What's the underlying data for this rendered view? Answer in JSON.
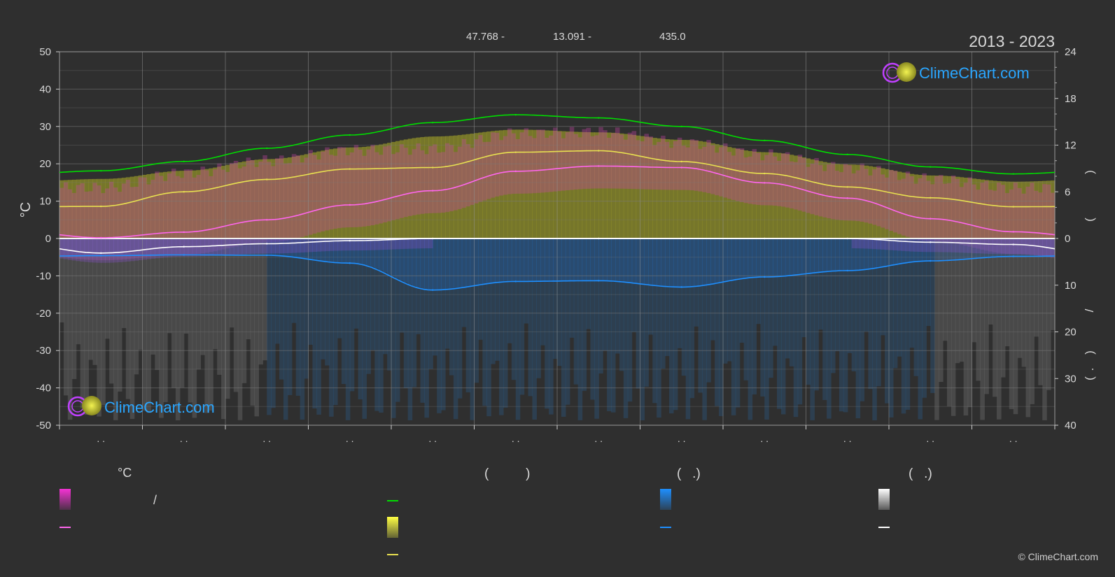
{
  "header": {
    "coord_lat": "47.768 -",
    "coord_lon": "13.091 -",
    "elevation": "435.0",
    "years": "2013 - 2023"
  },
  "brand": {
    "name": "ClimeChart.com",
    "copyright": "© ClimeChart.com"
  },
  "colors": {
    "background": "#2f2f2f",
    "sunshine": "#00dd00",
    "daylight": "#e0e04a",
    "temp_max": "#e8e050",
    "temp_mean": "#ff66ee",
    "temp_min_line": "#ffffff",
    "rain": "#1e8fff",
    "snow": "#ffffff",
    "brand_blue": "#2aa6ff"
  },
  "chart_data": {
    "type": "line",
    "left_axis": {
      "label": "°C",
      "ylim": [
        -50,
        50
      ],
      "ticks": [
        50,
        40,
        30,
        20,
        10,
        0,
        -10,
        -20,
        -30,
        -40,
        -50
      ]
    },
    "right_axis_top": {
      "ticks": [
        24,
        18,
        12,
        6,
        0
      ]
    },
    "right_axis_bottom": {
      "ticks": [
        10,
        20,
        30,
        40
      ]
    },
    "right_axis_glyphs": [
      ")",
      "(",
      "/",
      ")",
      "(",
      "."
    ],
    "month_tick_labels": [
      ". .",
      ". .",
      ". .",
      ". .",
      ". .",
      ". .",
      ". .",
      ". .",
      ". .",
      ". .",
      ". .",
      ". ."
    ],
    "x_months": [
      1,
      2,
      3,
      4,
      5,
      6,
      7,
      8,
      9,
      10,
      11,
      12
    ],
    "series": [
      {
        "key": "sunshine_hours",
        "axis": "right_top",
        "values": [
          8.7,
          9.9,
          11.6,
          13.3,
          14.9,
          15.9,
          15.5,
          14.4,
          12.6,
          10.8,
          9.2,
          8.3
        ]
      },
      {
        "key": "temp_max",
        "axis": "left",
        "values": [
          8.6,
          12.5,
          15.8,
          18.6,
          19.0,
          23.1,
          23.5,
          20.6,
          17.4,
          13.8,
          10.9,
          8.5
        ]
      },
      {
        "key": "temp_mean",
        "axis": "left",
        "values": [
          0.2,
          1.7,
          5.0,
          9.0,
          12.8,
          18.0,
          19.4,
          19.0,
          14.9,
          10.8,
          5.3,
          1.8
        ]
      },
      {
        "key": "snow_line",
        "axis": "left",
        "values": [
          -3.9,
          -2.2,
          -1.4,
          -0.6,
          0.0,
          0.0,
          0.0,
          0.0,
          0.0,
          0.0,
          -1.0,
          -1.6
        ]
      },
      {
        "key": "rain_line",
        "axis": "left",
        "values": [
          -4.6,
          -4.4,
          -4.5,
          -6.6,
          -13.8,
          -11.5,
          -11.3,
          -13.0,
          -10.3,
          -8.6,
          -6.0,
          -4.8
        ]
      }
    ]
  },
  "legend": {
    "col1_header": "°C",
    "col1_sep": "/",
    "col2_header": "(          )",
    "col3_header": "(   .)",
    "col4_header": "(   .)"
  }
}
